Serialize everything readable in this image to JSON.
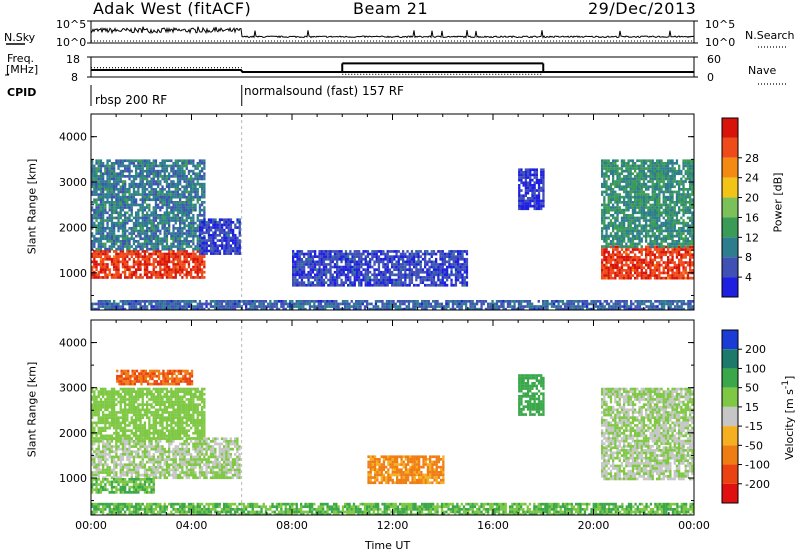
{
  "header": {
    "station": "Adak West (fitACF)",
    "beam": "Beam 21",
    "date": "29/Dec/2013"
  },
  "side_labels": {
    "nsky": "N.Sky",
    "nsearch": "N.Search",
    "freq_line1": "Freq.",
    "freq_line2": "[MHz]",
    "nave": "Nave",
    "cpid": "CPID"
  },
  "noise_panel": {
    "left_ticks": [
      "10^5",
      "10^0"
    ],
    "right_ticks": [
      "10^5",
      "10^0"
    ]
  },
  "freq_panel": {
    "left_ticks": [
      "18",
      "8"
    ],
    "right_ticks": [
      "60",
      "0"
    ],
    "freq_mhz": [
      {
        "from_h": 0,
        "to_h": 6,
        "value": 11.5
      },
      {
        "from_h": 6,
        "to_h": 24,
        "value": 10.5
      }
    ],
    "nave": [
      {
        "from_h": 0,
        "to_h": 6,
        "value": 28
      },
      {
        "from_h": 6,
        "to_h": 10,
        "value": 16
      },
      {
        "from_h": 10,
        "to_h": 18,
        "value": 8
      },
      {
        "from_h": 18,
        "to_h": 24,
        "value": 16
      }
    ]
  },
  "cpid_panel": {
    "segments": [
      {
        "label": "rbsp 200 RF",
        "from_h": 0
      },
      {
        "label": "normalsound (fast) 157 RF",
        "from_h": 6
      }
    ]
  },
  "power_colorbar": {
    "title": "Power [dB]",
    "ticks": [
      "4",
      "8",
      "12",
      "16",
      "20",
      "24",
      "28"
    ],
    "colors": [
      "#1f1fe0",
      "#3f51b5",
      "#2e7d8e",
      "#3a9b56",
      "#7cc05a",
      "#f2c418",
      "#f58a12",
      "#ee4a1a",
      "#d8140a"
    ]
  },
  "velocity_colorbar": {
    "title": "Velocity [m s^-1]",
    "ticks": [
      "200",
      "100",
      "50",
      "15",
      "-15",
      "-50",
      "-100",
      "-200"
    ],
    "colors": [
      "#1a3bd6",
      "#1d7a6a",
      "#3aa84a",
      "#7ec844",
      "#c6c6c6",
      "#f4b020",
      "#f07c14",
      "#ea4210",
      "#e01010"
    ]
  },
  "chart_data": [
    {
      "type": "heatmap",
      "title": "Power",
      "ylabel": "Slant Range [km]",
      "xlabel": "Time UT",
      "x_ticks": [
        "00:00",
        "04:00",
        "08:00",
        "12:00",
        "16:00",
        "20:00",
        "00:00"
      ],
      "y_ticks": [
        "1000",
        "2000",
        "3000",
        "4000"
      ],
      "xlim_hours": [
        0,
        24
      ],
      "ylim_km": [
        180,
        4500
      ],
      "echo_regions": [
        {
          "t0": 0,
          "t1": 4.5,
          "r0": 900,
          "r1": 1500,
          "value": 28
        },
        {
          "t0": 0,
          "t1": 4.5,
          "r0": 1500,
          "r1": 3500,
          "value": 10
        },
        {
          "t0": 4.3,
          "t1": 5.9,
          "r0": 1400,
          "r1": 2200,
          "value": 6
        },
        {
          "t0": 8,
          "t1": 15,
          "r0": 700,
          "r1": 1500,
          "value": 6
        },
        {
          "t0": 17,
          "t1": 18,
          "r0": 2400,
          "r1": 3300,
          "value": 5
        },
        {
          "t0": 20.3,
          "t1": 24,
          "r0": 900,
          "r1": 1600,
          "value": 28
        },
        {
          "t0": 20.3,
          "t1": 24,
          "r0": 1600,
          "r1": 3500,
          "value": 12
        },
        {
          "t0": 0,
          "t1": 24,
          "r0": 180,
          "r1": 400,
          "value": 8
        }
      ]
    },
    {
      "type": "heatmap",
      "title": "Velocity",
      "ylabel": "Slant Range [km]",
      "xlabel": "Time UT",
      "x_ticks": [
        "00:00",
        "04:00",
        "08:00",
        "12:00",
        "16:00",
        "20:00",
        "00:00"
      ],
      "y_ticks": [
        "1000",
        "2000",
        "3000",
        "4000"
      ],
      "xlim_hours": [
        0,
        24
      ],
      "ylim_km": [
        180,
        4500
      ],
      "echo_regions": [
        {
          "t0": 0,
          "t1": 5.9,
          "r0": 1000,
          "r1": 1900,
          "value": 0
        },
        {
          "t0": 0,
          "t1": 2.5,
          "r0": 700,
          "r1": 1000,
          "value": 30
        },
        {
          "t0": 0,
          "t1": 4.5,
          "r0": 1900,
          "r1": 3000,
          "value": 20
        },
        {
          "t0": 1,
          "t1": 4,
          "r0": 3100,
          "r1": 3400,
          "value": -150
        },
        {
          "t0": 11,
          "t1": 14,
          "r0": 900,
          "r1": 1500,
          "value": -80
        },
        {
          "t0": 17,
          "t1": 18,
          "r0": 2400,
          "r1": 3300,
          "value": 40
        },
        {
          "t0": 20.3,
          "t1": 24,
          "r0": 1000,
          "r1": 1700,
          "value": 0
        },
        {
          "t0": 20.3,
          "t1": 24,
          "r0": 1700,
          "r1": 3000,
          "value": 0
        },
        {
          "t0": 0,
          "t1": 24,
          "r0": 180,
          "r1": 450,
          "value": 30
        }
      ]
    }
  ],
  "xaxis_title": "Time UT"
}
